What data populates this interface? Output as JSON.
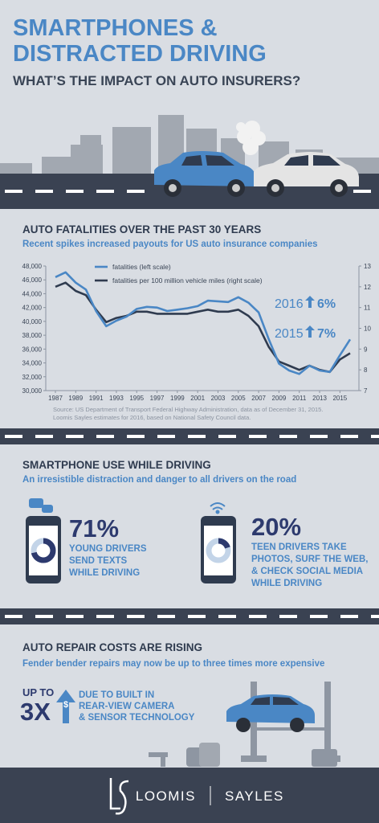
{
  "header": {
    "title_lines": [
      "SMARTPHONES &",
      "DISTRACTED DRIVING"
    ],
    "subtitle": "WHAT’S THE IMPACT ON AUTO INSURERS?"
  },
  "fatalities": {
    "heading": "AUTO FATALITIES OVER THE PAST 30 YEARS",
    "subheading": "Recent spikes increased payouts for US auto insurance companies",
    "chart_data": {
      "type": "line",
      "x": [
        1987,
        1988,
        1989,
        1990,
        1991,
        1992,
        1993,
        1994,
        1995,
        1996,
        1997,
        1998,
        1999,
        2000,
        2001,
        2002,
        2003,
        2004,
        2005,
        2006,
        2007,
        2008,
        2009,
        2010,
        2011,
        2012,
        2013,
        2014,
        2015,
        2016
      ],
      "xticks": [
        1987,
        1989,
        1991,
        1993,
        1995,
        1997,
        1999,
        2001,
        2003,
        2005,
        2007,
        2009,
        2011,
        2013,
        2015
      ],
      "ylim": [
        30000,
        48000
      ],
      "yticks": [
        {
          "value": 30000,
          "label": "30,000"
        },
        {
          "value": 32000,
          "label": "32,000"
        },
        {
          "value": 34000,
          "label": "34,000"
        },
        {
          "value": 36000,
          "label": "36,000"
        },
        {
          "value": 38000,
          "label": "38,000"
        },
        {
          "value": 40000,
          "label": "40,000"
        },
        {
          "value": 42000,
          "label": "42,000"
        },
        {
          "value": 44000,
          "label": "44,000"
        },
        {
          "value": 46000,
          "label": "46,000"
        },
        {
          "value": 48000,
          "label": "48,000"
        }
      ],
      "y2lim": [
        7,
        13
      ],
      "y2ticks": [
        7,
        8,
        9,
        10,
        11,
        12,
        13
      ],
      "series": [
        {
          "name": "fatalities (left scale)",
          "color": "#4a87c5",
          "values": [
            46400,
            47100,
            45600,
            44600,
            41500,
            39300,
            40100,
            40700,
            41800,
            42100,
            42000,
            41500,
            41700,
            41900,
            42200,
            43000,
            42900,
            42800,
            43500,
            42700,
            41300,
            37400,
            33900,
            32900,
            32400,
            33600,
            32900,
            32700,
            35100,
            37400
          ]
        },
        {
          "name": "fatalities per 100 million vehicle miles (right scale)",
          "color": "#2f3b4f",
          "axis": "y2",
          "values": [
            12.0,
            12.2,
            11.8,
            11.6,
            10.9,
            10.3,
            10.5,
            10.6,
            10.8,
            10.8,
            10.7,
            10.7,
            10.7,
            10.7,
            10.8,
            10.9,
            10.8,
            10.8,
            10.9,
            10.6,
            10.1,
            9.1,
            8.4,
            8.2,
            8.0,
            8.2,
            8.0,
            7.9,
            8.5,
            8.8
          ]
        }
      ],
      "annotations": [
        {
          "year": "2016",
          "change": "6%"
        },
        {
          "year": "2015",
          "change": "7%"
        }
      ],
      "source_lines": [
        "Source: US Department of Transport Federal Highway Administration, data as of December 31, 2015.",
        "Loomis Sayles estimates for 2016, based on National Safety Council data."
      ]
    }
  },
  "smartphone": {
    "heading": "SMARTPHONE USE WHILE DRIVING",
    "subheading": "An irresistible distraction and danger to all drivers on the road",
    "stats": [
      {
        "percent": 71,
        "percent_label": "71%",
        "lines": [
          "YOUNG DRIVERS",
          "SEND TEXTS",
          "WHILE DRIVING"
        ]
      },
      {
        "percent": 20,
        "percent_label": "20%",
        "lines": [
          "TEEN DRIVERS TAKE",
          "PHOTOS, SURF THE WEB,",
          "& CHECK SOCIAL MEDIA",
          "WHILE DRIVING"
        ]
      }
    ]
  },
  "repair": {
    "heading": "AUTO REPAIR COSTS ARE RISING",
    "subheading": "Fender bender repairs may now be up to three times more expensive",
    "up_to": "UP TO",
    "multiple": "3X",
    "symbol": "$",
    "lines": [
      "DUE TO BUILT IN",
      "REAR-VIEW CAMERA",
      "& SENSOR TECHNOLOGY"
    ]
  },
  "footer": {
    "brand_left": "LOOMIS",
    "brand_right": "SAYLES"
  }
}
